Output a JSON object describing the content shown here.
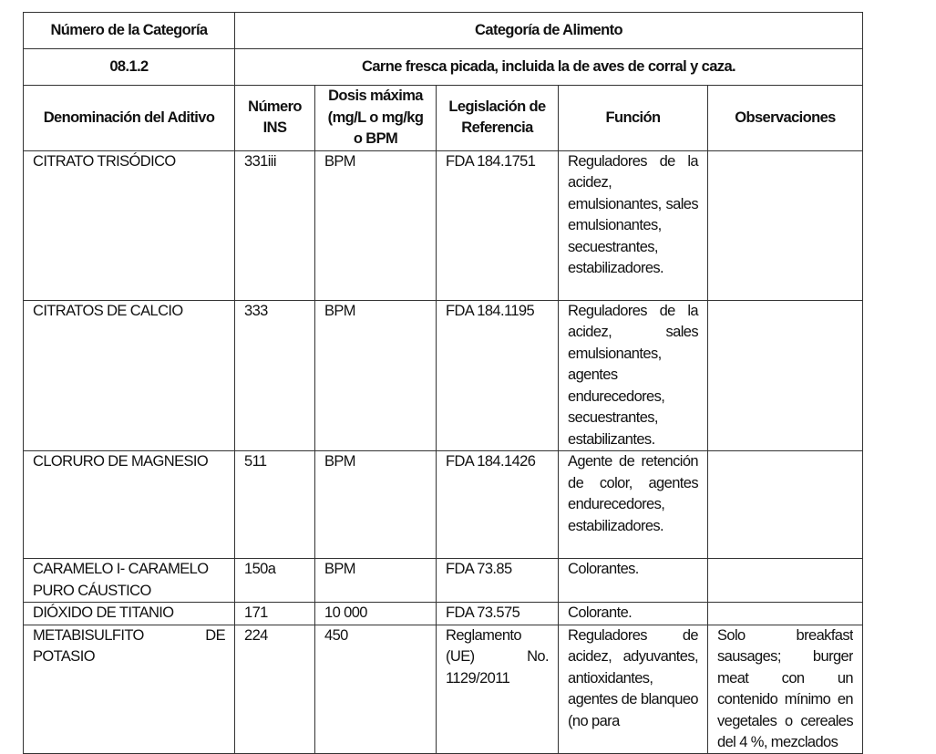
{
  "header": {
    "category_number_label": "Número de la Categoría",
    "food_category_label": "Categoría de Alimento",
    "category_number": "08.1.2",
    "food_category": "Carne fresca picada, incluida la de aves de corral y caza."
  },
  "columns": [
    "Denominación del Aditivo",
    "Número INS",
    "Dosis máxima (mg/L o mg/kg o BPM",
    "Legislación de Referencia",
    "Función",
    "Observaciones"
  ],
  "rows": [
    {
      "name": "CITRATO TRISÓDICO",
      "ins": "331iii",
      "dose": "BPM",
      "reference": "FDA 184.1751",
      "function": "Reguladores de la acidez, emulsionantes, sales emulsionantes, secuestrantes, estabilizadores.",
      "notes": ""
    },
    {
      "name": "CITRATOS DE CALCIO",
      "ins": "333",
      "dose": "BPM",
      "reference": "FDA 184.1195",
      "function": "Reguladores de la acidez, sales emulsionantes, agentes endurecedores, secuestrantes, estabilizantes.",
      "notes": ""
    },
    {
      "name": "CLORURO DE MAGNESIO",
      "ins": "511",
      "dose": "BPM",
      "reference": "FDA 184.1426",
      "function": "Agente de retención de color, agentes endurecedores, estabilizadores.",
      "notes": ""
    },
    {
      "name": "CARAMELO I- CARAMELO PURO CÁUSTICO",
      "ins": "150a",
      "dose": "BPM",
      "reference": "FDA 73.85",
      "function": "Colorantes.",
      "notes": ""
    },
    {
      "name": "DIÓXIDO DE TITANIO",
      "ins": "171",
      "dose": "10 000",
      "reference": "FDA 73.575",
      "function": "Colorante.",
      "notes": ""
    },
    {
      "name": "METABISULFITO DE POTASIO",
      "ins": "224",
      "dose": "450",
      "reference": "Reglamento (UE) No. 1129/2011",
      "function": "Reguladores de acidez, adyuvantes, antioxidantes, agentes de blanqueo (no para",
      "notes": "Solo breakfast sausages; burger meat con un contenido mínimo en vegetales o cereales del 4 %, mezclados"
    }
  ]
}
